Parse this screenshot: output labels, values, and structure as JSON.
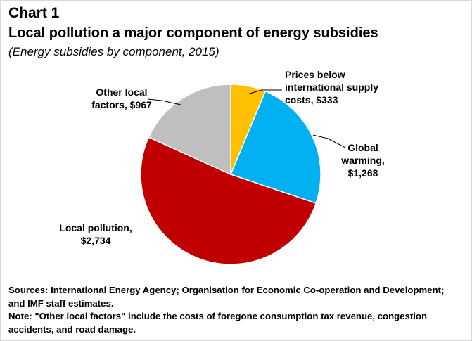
{
  "header": {
    "chart_number": "Chart 1",
    "title": "Local pollution a major component of energy subsidies",
    "subtitle": "(Energy subsidies by component, 2015)"
  },
  "chart_data": {
    "type": "pie",
    "title": "Local pollution a major component of energy subsidies",
    "subtitle": "(Energy subsidies by component, 2015)",
    "slices": [
      {
        "label_lines": [
          "Prices below",
          "international supply",
          "costs, $333"
        ],
        "value": 333,
        "color": "#FFC000"
      },
      {
        "label_lines": [
          "Global",
          "warming,",
          "$1,268"
        ],
        "value": 1268,
        "color": "#00B0F0"
      },
      {
        "label_lines": [
          "Local pollution,",
          "$2,734"
        ],
        "value": 2734,
        "color": "#C00000"
      },
      {
        "label_lines": [
          "Other local",
          "factors, $967"
        ],
        "value": 967,
        "color": "#BFBFBF"
      }
    ]
  },
  "notes": {
    "line1": "Sources: International Energy Agency; Organisation for Economic Co-operation and Development;",
    "line2": "and IMF staff estimates.",
    "line3": "Note: \"Other local factors\" include the costs of foregone consumption tax revenue, congestion",
    "line4": "accidents, and road damage."
  }
}
